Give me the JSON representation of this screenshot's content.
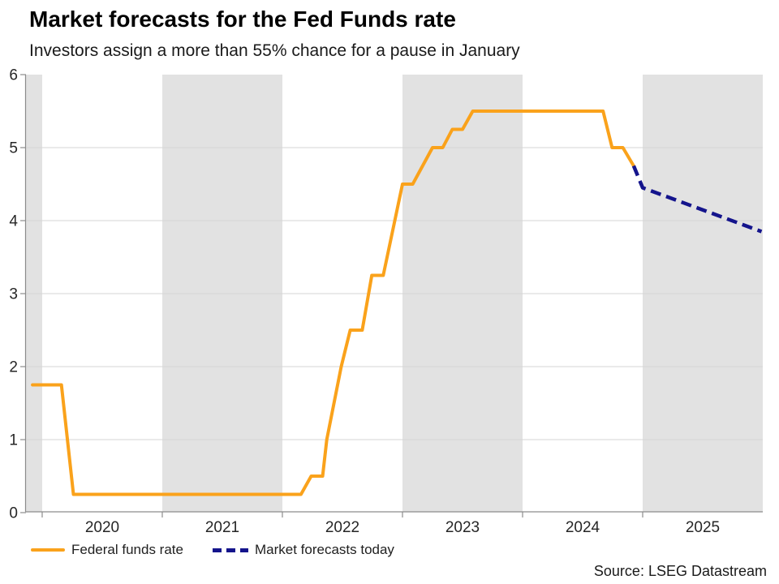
{
  "chart_data": {
    "type": "line",
    "title": "Market forecasts for the Fed Funds rate",
    "subtitle": "Investors assign a more than 55% chance for a pause in January",
    "source": "Source: LSEG Datastream",
    "xlabel": "",
    "ylabel": "",
    "x_range": [
      2019.865,
      2026.0
    ],
    "ylim": [
      0,
      6
    ],
    "yticks": [
      0,
      1,
      2,
      3,
      4,
      5,
      6
    ],
    "xticks": [
      2020,
      2021,
      2022,
      2023,
      2024,
      2025
    ],
    "shaded_bands": [
      [
        2019.865,
        2020
      ],
      [
        2021,
        2022
      ],
      [
        2023,
        2024
      ],
      [
        2025,
        2026
      ]
    ],
    "grid": "horizontal",
    "legend_position": "bottom-left",
    "colors": {
      "band": "#E2E2E2",
      "grid": "#D6D6D6",
      "axis": "#8C8C8C",
      "text": "#262626"
    },
    "series": [
      {
        "name": "Federal funds rate",
        "color": "#FAA21B",
        "style": "solid",
        "width": 4,
        "points": [
          [
            2019.92,
            1.75
          ],
          [
            2020.16,
            1.75
          ],
          [
            2020.26,
            0.25
          ],
          [
            2022.155,
            0.25
          ],
          [
            2022.24,
            0.5
          ],
          [
            2022.335,
            0.5
          ],
          [
            2022.37,
            1.0
          ],
          [
            2022.49,
            2.0
          ],
          [
            2022.565,
            2.5
          ],
          [
            2022.665,
            2.5
          ],
          [
            2022.745,
            3.25
          ],
          [
            2022.84,
            3.25
          ],
          [
            2023.0,
            4.5
          ],
          [
            2023.085,
            4.5
          ],
          [
            2023.25,
            5.0
          ],
          [
            2023.335,
            5.0
          ],
          [
            2023.415,
            5.25
          ],
          [
            2023.5,
            5.25
          ],
          [
            2023.585,
            5.5
          ],
          [
            2024.67,
            5.5
          ],
          [
            2024.745,
            5.0
          ],
          [
            2024.835,
            5.0
          ],
          [
            2024.925,
            4.75
          ]
        ]
      },
      {
        "name": "Market forecasts today",
        "color": "#14148C",
        "style": "dashed",
        "width": 4.5,
        "points": [
          [
            2024.925,
            4.75
          ],
          [
            2025.0,
            4.45
          ],
          [
            2025.99,
            3.85
          ]
        ]
      }
    ]
  }
}
